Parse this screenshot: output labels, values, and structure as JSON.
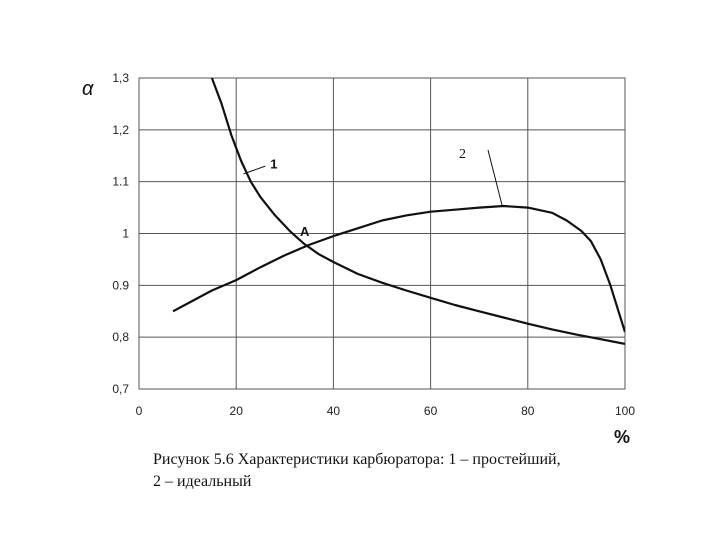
{
  "chart_data": {
    "type": "line",
    "ylabel": "α",
    "xunit_label": "%",
    "xlim": [
      0,
      100
    ],
    "ylim": [
      0.7,
      1.3
    ],
    "xticks": [
      0,
      20,
      40,
      60,
      80,
      100
    ],
    "yticks": [
      0.7,
      0.8,
      0.9,
      1.0,
      1.1,
      1.2,
      1.3
    ],
    "ytick_labels": [
      "0,7",
      "0,8",
      "0.9",
      "1",
      "1.1",
      "1,2",
      "1,3"
    ],
    "grid": true,
    "series": [
      {
        "name": "1",
        "x": [
          15,
          17,
          19,
          21,
          23,
          25,
          28,
          31,
          34,
          37,
          40,
          45,
          50,
          55,
          60,
          65,
          70,
          75,
          80,
          85,
          90,
          95,
          100
        ],
        "y": [
          1.3,
          1.25,
          1.19,
          1.14,
          1.1,
          1.07,
          1.035,
          1.005,
          0.98,
          0.96,
          0.945,
          0.922,
          0.905,
          0.89,
          0.876,
          0.862,
          0.85,
          0.838,
          0.826,
          0.815,
          0.805,
          0.796,
          0.787
        ]
      },
      {
        "name": "2",
        "x": [
          7,
          10,
          15,
          20,
          25,
          30,
          35,
          40,
          45,
          50,
          55,
          60,
          65,
          70,
          75,
          80,
          85,
          88,
          91,
          93,
          95,
          97,
          99,
          100
        ],
        "y": [
          0.85,
          0.865,
          0.89,
          0.91,
          0.935,
          0.958,
          0.978,
          0.995,
          1.01,
          1.025,
          1.035,
          1.042,
          1.046,
          1.05,
          1.053,
          1.05,
          1.04,
          1.025,
          1.005,
          0.985,
          0.95,
          0.9,
          0.84,
          0.81
        ]
      }
    ],
    "annotations": [
      {
        "text": "1",
        "x": 27,
        "y": 1.135
      },
      {
        "text": "2",
        "x": 67,
        "y": 1.16
      },
      {
        "text": "A",
        "x": 35,
        "y": 1.0
      }
    ]
  },
  "caption": {
    "line1": "Рисунок 5.6 Характеристики карбюратора: 1 – простейший,",
    "line2": "2 – идеальный"
  }
}
